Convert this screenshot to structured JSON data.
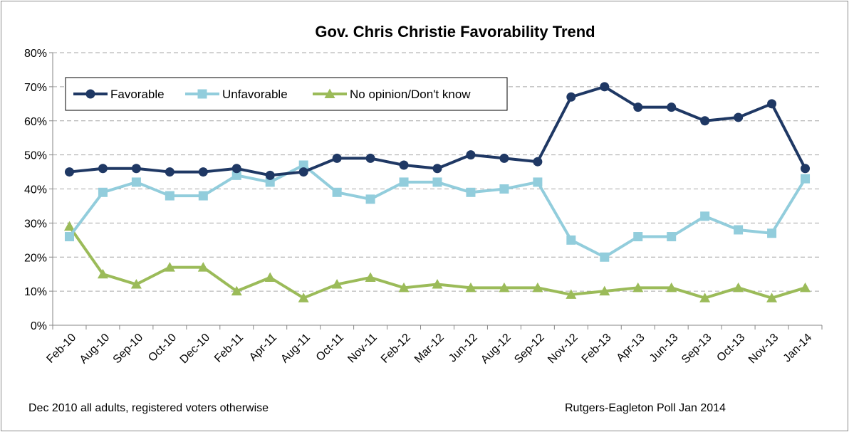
{
  "chart_data": {
    "type": "line",
    "title": "Gov. Chris Christie Favorability Trend",
    "xlabel": "",
    "ylabel": "",
    "categories": [
      "Feb-10",
      "Aug-10",
      "Sep-10",
      "Oct-10",
      "Dec-10",
      "Feb-11",
      "Apr-11",
      "Aug-11",
      "Oct-11",
      "Nov-11",
      "Feb-12",
      "Mar-12",
      "Jun-12",
      "Aug-12",
      "Sep-12",
      "Nov-12",
      "Feb-13",
      "Apr-13",
      "Jun-13",
      "Sep-13",
      "Oct-13",
      "Nov-13",
      "Jan-14"
    ],
    "y_ticks": [
      "0%",
      "10%",
      "20%",
      "30%",
      "40%",
      "50%",
      "60%",
      "70%",
      "80%"
    ],
    "ylim": [
      0,
      80
    ],
    "grid": true,
    "legend_position": "top-left",
    "series": [
      {
        "name": "Favorable",
        "color": "#1f3864",
        "marker": "circle",
        "values": [
          45,
          46,
          46,
          45,
          45,
          46,
          44,
          45,
          49,
          49,
          47,
          46,
          50,
          49,
          48,
          67,
          70,
          64,
          64,
          60,
          61,
          65,
          46
        ]
      },
      {
        "name": "Unfavorable",
        "color": "#92cddc",
        "marker": "square",
        "values": [
          26,
          39,
          42,
          38,
          38,
          44,
          42,
          47,
          39,
          37,
          42,
          42,
          39,
          40,
          42,
          25,
          20,
          26,
          26,
          32,
          28,
          27,
          43
        ]
      },
      {
        "name": "No opinion/Don't know",
        "color": "#9bbb59",
        "marker": "triangle",
        "values": [
          29,
          15,
          12,
          17,
          17,
          10,
          14,
          8,
          12,
          14,
          11,
          12,
          11,
          11,
          11,
          9,
          10,
          11,
          11,
          8,
          11,
          8,
          11
        ]
      }
    ]
  },
  "footnotes": {
    "left": "Dec 2010 all adults, registered voters otherwise",
    "right": "Rutgers-Eagleton Poll Jan 2014"
  }
}
